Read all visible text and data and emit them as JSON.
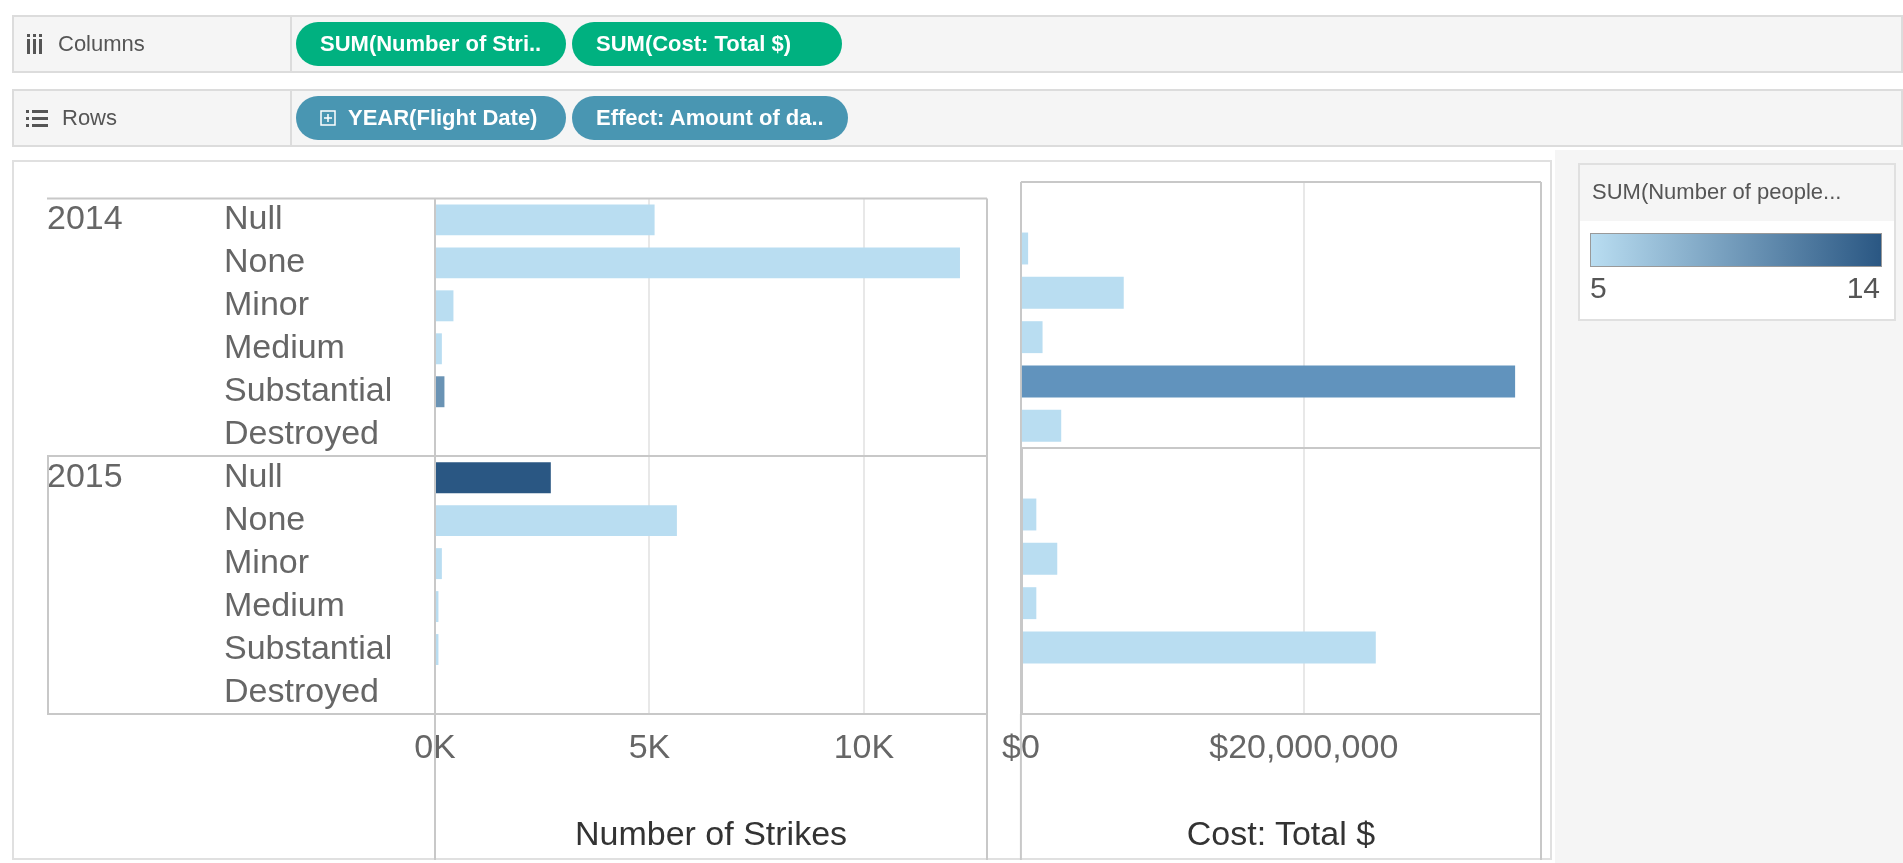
{
  "chart_data": [
    {
      "type": "other",
      "categories": [
        "Columns",
        "Rows"
      ],
      "annotations": [
        "SUM(Number of Stri..",
        "SUM(Cost: Total $)",
        "YEAR(Flight Date)",
        "Effect: Amount of da.."
      ]
    },
    {
      "type": "bar",
      "orientation": "horizontal",
      "xlabel": "Number of Strikes",
      "categories": [
        "Null",
        "None",
        "Minor",
        "Medium",
        "Substantial",
        "Destroyed",
        "Null",
        "None",
        "Minor",
        "Medium",
        "Substantial",
        "Destroyed"
      ],
      "annotations": [
        "2014",
        "2015"
      ],
      "values": [
        5120,
        12240,
        430,
        160,
        220,
        null,
        2700,
        5640,
        160,
        80,
        80,
        null
      ],
      "cvalues": [
        5,
        5,
        5,
        5,
        10,
        null,
        14,
        5,
        5,
        5,
        5,
        null
      ],
      "clim": [
        5,
        14
      ],
      "cticks": [
        5,
        14
      ],
      "clabel": "SUM(Number of people...",
      "xlim": [
        0,
        12870
      ],
      "xticks": [
        {
          "value": 0,
          "label": "0K"
        },
        {
          "value": 5000,
          "label": "5K"
        },
        {
          "value": 10000,
          "label": "10K"
        }
      ],
      "grid": "x",
      "legend": false
    },
    {
      "type": "bar",
      "orientation": "horizontal",
      "xlabel": "Cost: Total $",
      "values": [
        null,
        510000,
        7270000,
        1530000,
        34940000,
        2850000,
        null,
        1090000,
        2570000,
        1090000,
        25090000,
        null
      ],
      "colors": [
        "#b9ddf1",
        "#b9ddf1",
        "#b9ddf1",
        "#b9ddf1",
        "#6193bd",
        "#b9ddf1",
        "#b9ddf1",
        "#b9ddf1",
        "#b9ddf1",
        "#b9ddf1",
        "#b9ddf1",
        "#b9ddf1"
      ],
      "xlim": [
        0,
        36770000
      ],
      "xticks": [
        {
          "value": 0,
          "label": "$0"
        },
        {
          "value": 20000000,
          "label": "$20,000,000"
        }
      ],
      "grid": "x",
      "legend": false,
      "tick_labels": "x"
    }
  ]
}
